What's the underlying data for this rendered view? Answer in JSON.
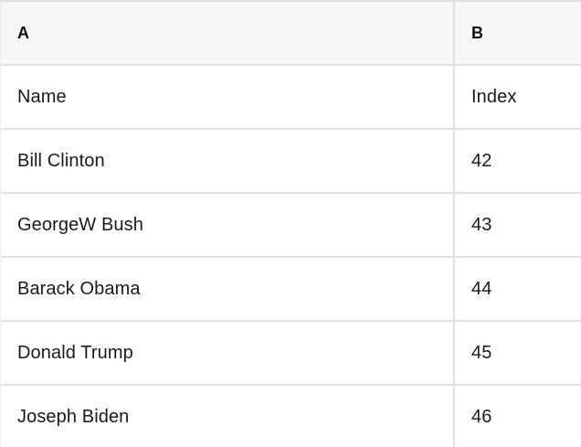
{
  "spreadsheet": {
    "columns": [
      {
        "header": "A"
      },
      {
        "header": "B"
      }
    ],
    "rows": [
      {
        "a": "Name",
        "b": "Index"
      },
      {
        "a": "Bill Clinton",
        "b": "42"
      },
      {
        "a": "GeorgeW Bush",
        "b": "43"
      },
      {
        "a": "Barack Obama",
        "b": "44"
      },
      {
        "a": "Donald Trump",
        "b": "45"
      },
      {
        "a": "Joseph Biden",
        "b": "46"
      }
    ],
    "colors": {
      "header_bg": "#f7f7f7",
      "border": "#e0e0e0",
      "text": "#1a1a1a",
      "cell_bg": "#ffffff"
    }
  }
}
